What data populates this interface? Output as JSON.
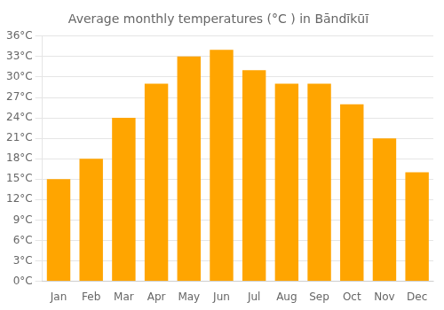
{
  "chart_data": {
    "type": "bar",
    "title": "Average monthly temperatures (°C ) in Bāndīkūī",
    "categories": [
      "Jan",
      "Feb",
      "Mar",
      "Apr",
      "May",
      "Jun",
      "Jul",
      "Aug",
      "Sep",
      "Oct",
      "Nov",
      "Dec"
    ],
    "values": [
      15,
      18,
      24,
      29,
      33,
      34,
      31,
      29,
      29,
      26,
      21,
      16
    ],
    "color": "#FFA500",
    "ylim": [
      0,
      36
    ],
    "yticks": [
      {
        "value": 0,
        "label": "0°C"
      },
      {
        "value": 3,
        "label": "3°C"
      },
      {
        "value": 6,
        "label": "6°C"
      },
      {
        "value": 9,
        "label": "9°C"
      },
      {
        "value": 12,
        "label": "12°C"
      },
      {
        "value": 15,
        "label": "15°C"
      },
      {
        "value": 18,
        "label": "18°C"
      },
      {
        "value": 21,
        "label": "21°C"
      },
      {
        "value": 24,
        "label": "24°C"
      },
      {
        "value": 27,
        "label": "27°C"
      },
      {
        "value": 30,
        "label": "30°C"
      },
      {
        "value": 33,
        "label": "33°C"
      },
      {
        "value": 36,
        "label": "36°C"
      }
    ],
    "grid": "y"
  }
}
